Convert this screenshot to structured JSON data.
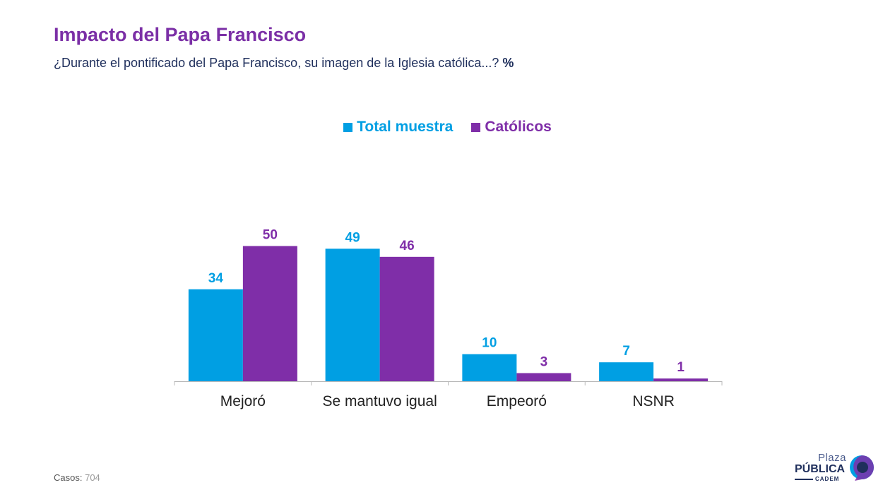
{
  "header": {
    "title": "Impacto del Papa Francisco",
    "subtitle": "¿Durante el pontificado del Papa Francisco, su imagen de la Iglesia católica...?",
    "unit": "%"
  },
  "colors": {
    "title": "#7b2fa6",
    "total": "#009fe3",
    "catolicos": "#7f2ea8",
    "text_dark": "#1f2f5c"
  },
  "chart_data": {
    "type": "bar",
    "categories": [
      "Mejoró",
      "Se mantuvo igual",
      "Empeoró",
      "NSNR"
    ],
    "series": [
      {
        "name": "Total muestra",
        "values": [
          34,
          49,
          10,
          7
        ]
      },
      {
        "name": "Católicos",
        "values": [
          50,
          46,
          3,
          1
        ]
      }
    ],
    "ylim": [
      0,
      50
    ],
    "grid": false,
    "legend": "top-center",
    "data_labels": true
  },
  "footer": {
    "casos_label": "Casos",
    "casos_value": "704"
  },
  "logo": {
    "line1": "Plaza",
    "line2": "PÚBLICA",
    "line3": "CADEM"
  }
}
